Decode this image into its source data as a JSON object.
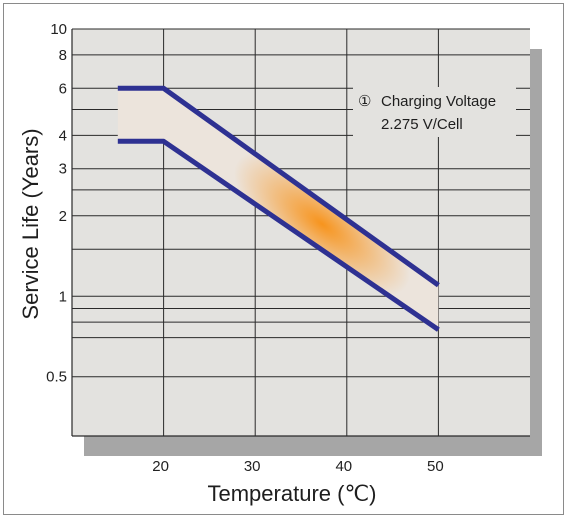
{
  "chart_data": {
    "type": "line",
    "xlabel": "Temperature (℃)",
    "ylabel": "Service Life (Years)",
    "y_scale": "log",
    "xlim": [
      10,
      60
    ],
    "ylim": [
      0.3,
      10
    ],
    "grid": true,
    "legend_position": "top-right",
    "x_ticks": [
      {
        "value": 20,
        "label": "20"
      },
      {
        "value": 30,
        "label": "30"
      },
      {
        "value": 40,
        "label": "40"
      },
      {
        "value": 50,
        "label": "50"
      }
    ],
    "y_ticks": [
      {
        "value": 10,
        "label": "10"
      },
      {
        "value": 8,
        "label": "8"
      },
      {
        "value": 6,
        "label": "6"
      },
      {
        "value": 4,
        "label": "4"
      },
      {
        "value": 3,
        "label": "3"
      },
      {
        "value": 2,
        "label": "2"
      },
      {
        "value": 1,
        "label": "1"
      },
      {
        "value": 0.5,
        "label": "0.5"
      }
    ],
    "y_gridlines": [
      10,
      8,
      6,
      5,
      4,
      3,
      2.5,
      2,
      1.5,
      1,
      0.9,
      0.8,
      0.7,
      0.5
    ],
    "series": [
      {
        "x": [
          15,
          20,
          50
        ],
        "y": [
          6,
          6,
          1.1
        ]
      },
      {
        "x": [
          15,
          20,
          50
        ],
        "y": [
          3.8,
          3.8,
          0.75
        ]
      }
    ],
    "annotation": {
      "marker": "①",
      "lines": [
        "Charging Voltage",
        "2.275 V/Cell"
      ]
    },
    "colors": {
      "line": "#2e3192",
      "band_fill": "#ece4dc",
      "band_hotspot": "#f7941d",
      "plot_bg": "#e3e2df",
      "plot_shadow": "#a6a6a6",
      "grid": "#2a2a2a"
    }
  }
}
